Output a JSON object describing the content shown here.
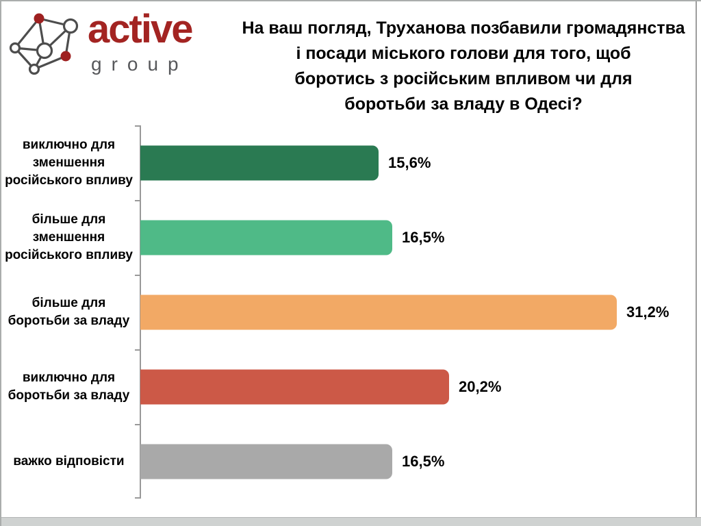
{
  "brand": {
    "name_primary": "active",
    "name_secondary": "group",
    "logo_icon": "network-nodes-icon",
    "primary_color": "#A32422",
    "secondary_color": "#57585B"
  },
  "chart_data": {
    "type": "bar",
    "orientation": "horizontal",
    "title": "На ваш погляд, Труханова позбавили громадянства\nі посади міського голови для того, щоб\nборотись з російським впливом чи для\nборотьби за владу в Одесі?",
    "categories": [
      "виключно для\nзменшення\nросійського впливу",
      "більше для\nзменшення\nросійського впливу",
      "більше для\nборотьби за владу",
      "виключно для\nборотьби за владу",
      "важко відповісти"
    ],
    "values": [
      15.6,
      16.5,
      31.2,
      20.2,
      16.5
    ],
    "value_labels": [
      "15,6%",
      "16,5%",
      "31,2%",
      "20,2%",
      "16,5%"
    ],
    "bar_colors": [
      "#2A7A52",
      "#4FBA87",
      "#F2A965",
      "#CC5947",
      "#A9A9A9"
    ],
    "xlim": [
      0,
      36
    ],
    "xlabel": "",
    "ylabel": "",
    "grid": false,
    "legend": false,
    "axis_color": "#999999",
    "value_label_color": "#000000"
  }
}
